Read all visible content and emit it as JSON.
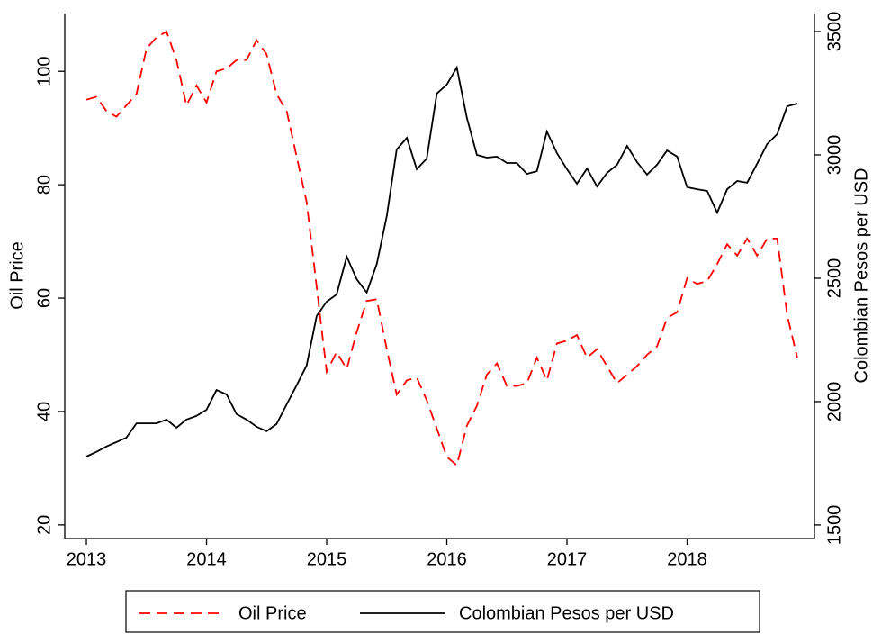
{
  "chart_data": {
    "type": "line",
    "x": [
      2013,
      2013.083,
      2013.167,
      2013.25,
      2013.333,
      2013.417,
      2013.5,
      2013.583,
      2013.667,
      2013.75,
      2013.833,
      2013.917,
      2014,
      2014.083,
      2014.167,
      2014.25,
      2014.333,
      2014.417,
      2014.5,
      2014.583,
      2014.667,
      2014.75,
      2014.833,
      2014.917,
      2015,
      2015.083,
      2015.167,
      2015.25,
      2015.333,
      2015.417,
      2015.5,
      2015.583,
      2015.667,
      2015.75,
      2015.833,
      2015.917,
      2016,
      2016.083,
      2016.167,
      2016.25,
      2016.333,
      2016.417,
      2016.5,
      2016.583,
      2016.667,
      2016.75,
      2016.833,
      2016.917,
      2017,
      2017.083,
      2017.167,
      2017.25,
      2017.333,
      2017.417,
      2017.5,
      2017.583,
      2017.667,
      2017.75,
      2017.833,
      2017.917,
      2018,
      2018.083,
      2018.167,
      2018.25,
      2018.333,
      2018.417,
      2018.5,
      2018.583,
      2018.667,
      2018.75,
      2018.833,
      2018.917
    ],
    "xlim": [
      2012.82,
      2019.06
    ],
    "xticks": [
      2013,
      2014,
      2015,
      2016,
      2017,
      2018
    ],
    "ylabel": "Oil Price",
    "ylim": [
      17.6,
      110.2
    ],
    "yticks": [
      20,
      40,
      60,
      80,
      100
    ],
    "y2label": "Colombian Pesos per USD",
    "y2lim": [
      1445,
      3573
    ],
    "y2ticks": [
      1500,
      2000,
      2500,
      3000,
      3500
    ],
    "legend": "bottom",
    "series": [
      {
        "name": "Oil Price",
        "color": "#ff0000",
        "linestyle": "dashed",
        "values": [
          95,
          95.5,
          93,
          92,
          94,
          96,
          104,
          106,
          107,
          102,
          94,
          97.5,
          94.5,
          100,
          100.5,
          102,
          102,
          105.5,
          103,
          96,
          93,
          85,
          77,
          62,
          47,
          50.5,
          47.5,
          54,
          59.5,
          59.8,
          51,
          43,
          45.5,
          46,
          42,
          37,
          32,
          30.5,
          37.5,
          41,
          46.5,
          48.5,
          44.5,
          44.5,
          45,
          49.5,
          45.5,
          52,
          52.5,
          53.5,
          49.5,
          51,
          48,
          45,
          46.5,
          48,
          50,
          51.5,
          56.5,
          57.5,
          63.5,
          62.5,
          63,
          66,
          69.5,
          67.5,
          70.5,
          67.5,
          70.5,
          70.5,
          57,
          49.5
        ]
      },
      {
        "name": "Colombian Pesos per USD",
        "color": "#000000",
        "linestyle": "solid",
        "axis": "y2",
        "values": [
          1777,
          1796,
          1818,
          1836,
          1854,
          1912,
          1912,
          1912,
          1927,
          1894,
          1927,
          1942,
          1967,
          2047,
          2029,
          1949,
          1927,
          1898,
          1880,
          1909,
          1989,
          2066,
          2146,
          2347,
          2405,
          2434,
          2588,
          2496,
          2442,
          2558,
          2752,
          3022,
          3069,
          2942,
          2985,
          3248,
          3285,
          3354,
          3150,
          3000,
          2989,
          2993,
          2967,
          2967,
          2923,
          2934,
          3095,
          3007,
          2942,
          2883,
          2945,
          2872,
          2927,
          2960,
          3036,
          2971,
          2920,
          2960,
          3018,
          2993,
          2869,
          2861,
          2854,
          2766,
          2861,
          2894,
          2887,
          2964,
          3044,
          3084,
          3197,
          3208
        ]
      }
    ]
  }
}
